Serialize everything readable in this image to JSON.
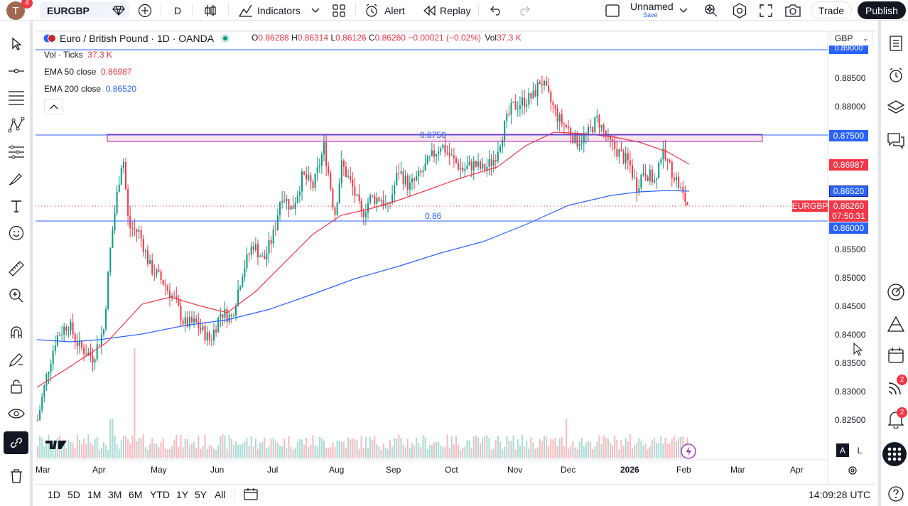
{
  "topbar": {
    "avatar_letter": "T",
    "avatar_badge": "4",
    "symbol": "EURGBP",
    "interval": "D",
    "indicators_label": "Indicators",
    "alert_label": "Alert",
    "replay_label": "Replay",
    "layout_name": "Unnamed",
    "layout_save": "Save",
    "trade_label": "Trade",
    "publish_label": "Publish"
  },
  "legend": {
    "title": "Euro / British Pound · 1D · OANDA",
    "open_label": "O",
    "open": "0.86288",
    "high_label": "H",
    "high": "0.86314",
    "low_label": "L",
    "low": "0.86126",
    "close_label": "C",
    "close": "0.86260",
    "change": "−0.00021 (−0.02%)",
    "vol_label": "Vol",
    "vol": "37.3 K",
    "indicators": [
      {
        "name": "Vol · Ticks",
        "value": "37.3 K",
        "color": "#f23645"
      },
      {
        "name": "EMA 50 close",
        "value": "0.86987",
        "color": "#f23645"
      },
      {
        "name": "EMA 200 close",
        "value": "0.86520",
        "color": "#2962ff"
      }
    ],
    "currency": "GBP"
  },
  "price_axis": {
    "labels": [
      "0.88500",
      "0.88000",
      "0.85500",
      "0.85000",
      "0.84500",
      "0.84000",
      "0.83500",
      "0.83000",
      "0.82500"
    ],
    "top_partial": "0.89000",
    "tags": {
      "level_875": "0.87500",
      "ema50": "0.86987",
      "ema200": "0.86520",
      "last": "0.86260",
      "countdown": "07:50:31",
      "level_86": "0.86000",
      "symbol_tag": "EURGBP"
    }
  },
  "drawings": {
    "rect_label": "0.8750",
    "line_label": "0.86"
  },
  "time_axis": [
    "Mar",
    "Apr",
    "May",
    "Jun",
    "Jul",
    "Aug",
    "Sep",
    "Oct",
    "Nov",
    "Dec",
    "2026",
    "Feb",
    "Mar",
    "Apr"
  ],
  "bottombar": {
    "periods": [
      "1D",
      "5D",
      "1M",
      "3M",
      "6M",
      "YTD",
      "1Y",
      "5Y",
      "All"
    ],
    "clock": "14:09:28 UTC",
    "scale_a": "A",
    "scale_l": "L"
  },
  "right_badges": {
    "streams": "2",
    "alerts": "2"
  },
  "colors": {
    "up": "#089981",
    "down": "#f23645",
    "ema50": "#f23645",
    "ema200": "#2962ff",
    "accent": "#2962ff"
  }
}
